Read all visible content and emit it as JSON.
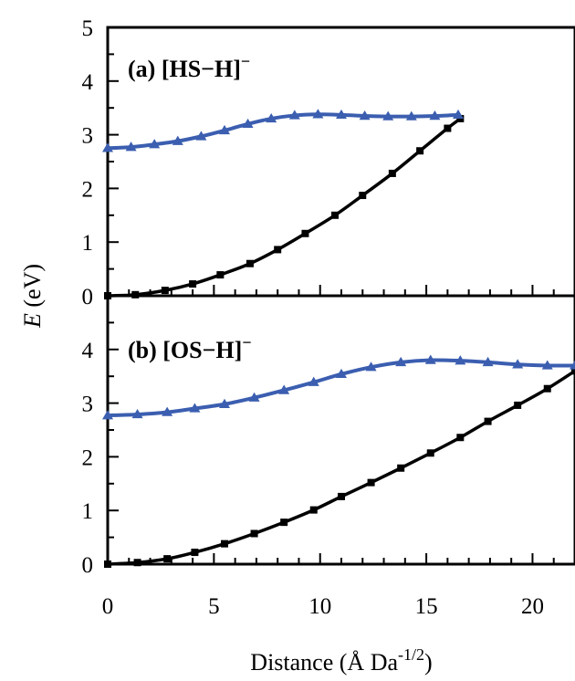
{
  "chart_data": [
    {
      "type": "line",
      "panel_label": "(a) [HS−H]",
      "panel_label_sup": "−",
      "xlim": [
        0,
        22
      ],
      "ylim": [
        0,
        5
      ],
      "x_ticks": [
        0,
        5,
        10,
        15,
        20
      ],
      "y_ticks": [
        0,
        1,
        2,
        3,
        4,
        5
      ],
      "grid": false,
      "series": [
        {
          "color": "#000000",
          "marker": "square",
          "x": [
            0.0,
            1.3,
            2.7,
            4.0,
            5.3,
            6.7,
            8.0,
            9.3,
            10.7,
            12.0,
            13.4,
            14.7,
            16.0,
            16.6
          ],
          "y": [
            0.0,
            0.02,
            0.1,
            0.22,
            0.39,
            0.6,
            0.86,
            1.16,
            1.5,
            1.87,
            2.28,
            2.7,
            3.12,
            3.3
          ]
        },
        {
          "color": "#3b5eb0",
          "marker": "triangle",
          "x": [
            0.0,
            1.1,
            2.2,
            3.3,
            4.4,
            5.5,
            6.6,
            7.7,
            8.8,
            9.9,
            11.0,
            12.1,
            13.2,
            14.3,
            15.4,
            16.5
          ],
          "y": [
            2.75,
            2.77,
            2.82,
            2.88,
            2.97,
            3.08,
            3.2,
            3.3,
            3.36,
            3.38,
            3.37,
            3.35,
            3.34,
            3.34,
            3.35,
            3.37
          ]
        }
      ]
    },
    {
      "type": "line",
      "panel_label": "(b) [OS−H]",
      "panel_label_sup": "−",
      "xlim": [
        0,
        22
      ],
      "ylim": [
        0,
        5
      ],
      "x_ticks": [
        0,
        5,
        10,
        15,
        20
      ],
      "y_ticks": [
        0,
        1,
        2,
        3,
        4
      ],
      "grid": false,
      "series": [
        {
          "color": "#000000",
          "marker": "square",
          "x": [
            0.0,
            1.4,
            2.8,
            4.1,
            5.5,
            6.9,
            8.3,
            9.7,
            11.0,
            12.4,
            13.8,
            15.2,
            16.6,
            17.9,
            19.3,
            20.7,
            22.0
          ],
          "y": [
            0.0,
            0.03,
            0.1,
            0.22,
            0.38,
            0.57,
            0.78,
            1.01,
            1.26,
            1.52,
            1.79,
            2.07,
            2.36,
            2.66,
            2.96,
            3.27,
            3.6
          ]
        },
        {
          "color": "#3b5eb0",
          "marker": "triangle",
          "x": [
            0.0,
            1.4,
            2.8,
            4.1,
            5.5,
            6.9,
            8.3,
            9.7,
            11.0,
            12.4,
            13.8,
            15.2,
            16.6,
            17.9,
            19.3,
            20.7,
            22.0
          ],
          "y": [
            2.77,
            2.79,
            2.83,
            2.9,
            2.98,
            3.1,
            3.24,
            3.39,
            3.54,
            3.67,
            3.76,
            3.8,
            3.79,
            3.76,
            3.72,
            3.7,
            3.7
          ]
        }
      ]
    }
  ],
  "axes": {
    "ylabel_var": "E",
    "ylabel_unit": " (eV)",
    "xlabel": "Distance (Å Da",
    "xlabel_sup": "-1/2",
    "xlabel_close": ")"
  }
}
